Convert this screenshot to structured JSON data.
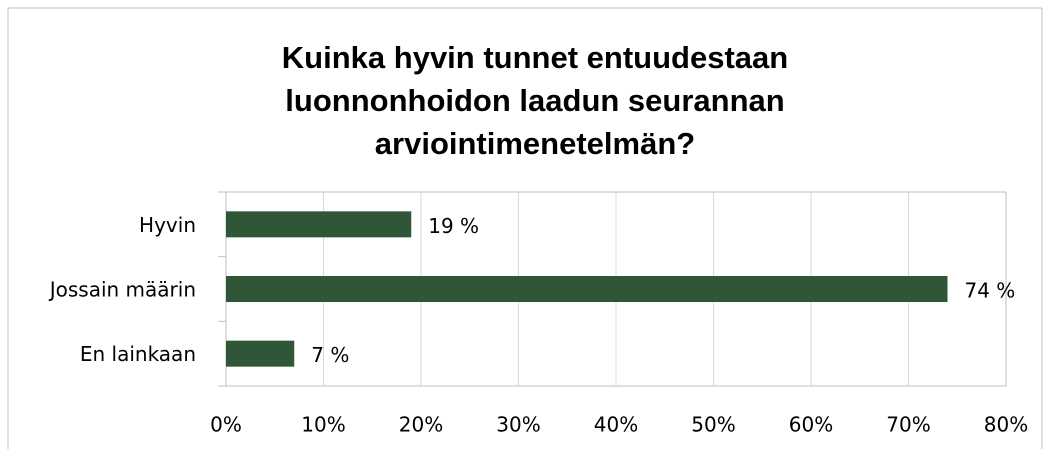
{
  "chart_data": {
    "type": "bar",
    "orientation": "horizontal",
    "title": "Kuinka hyvin tunnet entuudestaan luonnonhoidon laadun seurannan arviointimenetelmän?",
    "categories": [
      "Hyvin",
      "Jossain määrin",
      "En lainkaan"
    ],
    "values": [
      19,
      74,
      7
    ],
    "value_labels": [
      "19 %",
      "74 %",
      "7 %"
    ],
    "color": "#2f5737",
    "xlim": [
      0,
      80
    ],
    "xticks": [
      {
        "value": 0,
        "label": "0%"
      },
      {
        "value": 10,
        "label": "10%"
      },
      {
        "value": 20,
        "label": "20%"
      },
      {
        "value": 30,
        "label": "30%"
      },
      {
        "value": 40,
        "label": "40%"
      },
      {
        "value": 50,
        "label": "50%"
      },
      {
        "value": 60,
        "label": "60%"
      },
      {
        "value": 70,
        "label": "70%"
      },
      {
        "value": 80,
        "label": "80%"
      }
    ],
    "grid": true
  }
}
